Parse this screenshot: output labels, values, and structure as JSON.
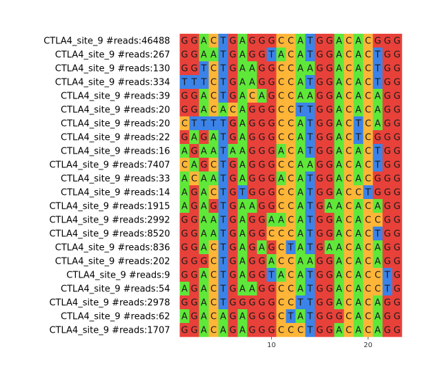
{
  "chart_data": {
    "type": "heatmap",
    "title": "",
    "xlabel": "",
    "ylabel": "",
    "rows": [
      {
        "label": "CTLA4_site_9 #reads:46488",
        "seq": "GGACTGAGGGCCATGGACACGGG"
      },
      {
        "label": "CTLA4_site_9 #reads:267",
        "seq": "GGAATGAGGTACATGGACACTGG"
      },
      {
        "label": "CTLA4_site_9 #reads:130",
        "seq": "GGTCTGAAGGCCAAGGACACTGG"
      },
      {
        "label": "CTLA4_site_9 #reads:334",
        "seq": "TTTCTGAAGGCCATGGACACTGG"
      },
      {
        "label": "CTLA4_site_9 #reads:39",
        "seq": "GGACTGACAGCCAAGGACACAGG"
      },
      {
        "label": "CTLA4_site_9 #reads:20",
        "seq": "GGACACAGGGCCTTGGACACAGG"
      },
      {
        "label": "CTLA4_site_9 #reads:20",
        "seq": "CTTTTGAGGGCCATGGACTCAGG"
      },
      {
        "label": "CTLA4_site_9 #reads:22",
        "seq": "GAGATGAGGGCCATGGACTCGGG"
      },
      {
        "label": "CTLA4_site_9 #reads:16",
        "seq": "AGAATAAGGGACATGGACACTGG"
      },
      {
        "label": "CTLA4_site_9 #reads:7407",
        "seq": "CAGCTGAGGGCCAAGGACACTGG"
      },
      {
        "label": "CTLA4_site_9 #reads:33",
        "seq": "ACAATGAGGGACATGGACACGGG"
      },
      {
        "label": "CTLA4_site_9 #reads:14",
        "seq": "AGACTGTGGGCCATGGACCTGGG"
      },
      {
        "label": "CTLA4_site_9 #reads:1915",
        "seq": "AGAGTGAAGGCCATGAACACAGG"
      },
      {
        "label": "CTLA4_site_9 #reads:2992",
        "seq": "GGAATGAGGAACATGGACACCGG"
      },
      {
        "label": "CTLA4_site_9 #reads:8520",
        "seq": "GGAATGAGGCCCATGGACACTGG"
      },
      {
        "label": "CTLA4_site_9 #reads:836",
        "seq": "GGACTGAGAGCTATGAACACAGG"
      },
      {
        "label": "CTLA4_site_9 #reads:202",
        "seq": "GGGCTGAGGACCAAGGACACAGG"
      },
      {
        "label": "CTLA4_site_9 #reads:9",
        "seq": "GGACTGAGGTACATGGACACCTG"
      },
      {
        "label": "CTLA4_site_9 #reads:54",
        "seq": "AGACTGAAGGCCATGGACACCTG"
      },
      {
        "label": "CTLA4_site_9 #reads:2978",
        "seq": "GGACTGGGGGCCTTGGACACAGG"
      },
      {
        "label": "CTLA4_site_9 #reads:62",
        "seq": "AGACAGAGGGCTATGGGCACAGG"
      },
      {
        "label": "CTLA4_site_9 #reads:1707",
        "seq": "GGACAGAGGGCCCTGGACACAGG"
      }
    ],
    "x_ticks": [
      10,
      20
    ],
    "x_range": [
      1,
      23
    ],
    "colors": {
      "G": "#e8413a",
      "A": "#5fe83a",
      "C": "#ffb638",
      "T": "#3b83e8"
    }
  }
}
